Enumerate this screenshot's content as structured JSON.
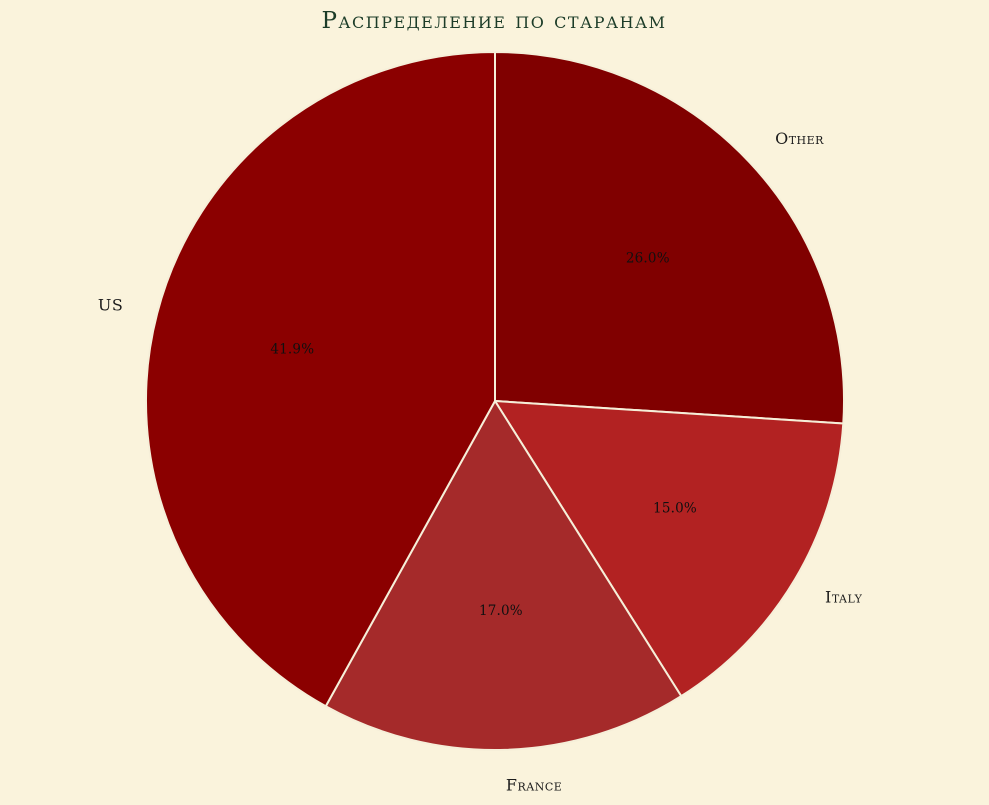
{
  "background_color": "#FAF3DC",
  "chart_data": {
    "type": "pie",
    "title": "Распределение по старанам",
    "title_color": "#1C3C28",
    "start_angle": "top",
    "direction": "clockwise",
    "legend": "none",
    "pct_distance": 0.6,
    "label_distance": 1.1,
    "wedge_edge_color": "#F6EFD9",
    "label_color": "#1C1C1C",
    "pct_color": "#101010",
    "slices": [
      {
        "label": "Other",
        "value": 26.0,
        "pct_label": "26.0%",
        "color": "#800000"
      },
      {
        "label": "Italy",
        "value": 15.0,
        "pct_label": "15.0%",
        "color": "#B22222"
      },
      {
        "label": "France",
        "value": 17.0,
        "pct_label": "17.0%",
        "color": "#A52A2A"
      },
      {
        "label": "US",
        "value": 41.9,
        "pct_label": "41.9%",
        "color": "#8B0000"
      }
    ]
  }
}
